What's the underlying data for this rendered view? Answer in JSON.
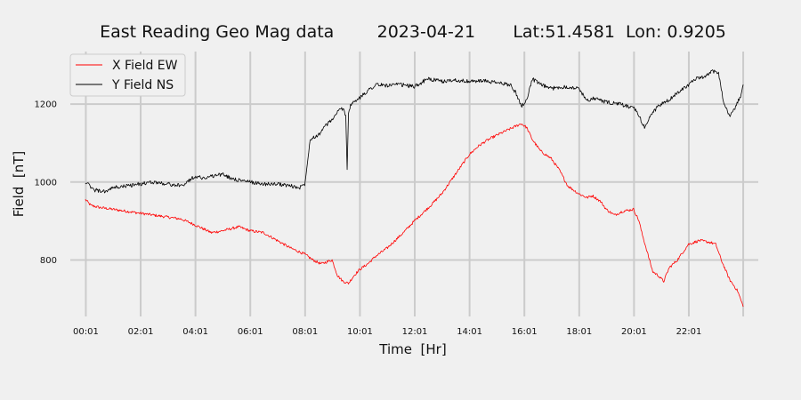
{
  "chart_data": {
    "type": "line",
    "title": "East Reading Geo Mag data        2023-04-21       Lat:51.4581  Lon: 0.9205",
    "xlabel": "Time  [Hr]",
    "ylabel": "Field  [nT]",
    "x_unit": "hours",
    "xlim": [
      -0.55,
      24.55
    ],
    "ylim": [
      655,
      1335
    ],
    "x_ticks": [
      {
        "value": 0.0167,
        "label": "00:01"
      },
      {
        "value": 2.0167,
        "label": "02:01"
      },
      {
        "value": 4.0167,
        "label": "04:01"
      },
      {
        "value": 6.0167,
        "label": "06:01"
      },
      {
        "value": 8.0167,
        "label": "08:01"
      },
      {
        "value": 10.0167,
        "label": "10:01"
      },
      {
        "value": 12.0167,
        "label": "12:01"
      },
      {
        "value": 14.0167,
        "label": "14:01"
      },
      {
        "value": 16.0167,
        "label": "16:01"
      },
      {
        "value": 18.0167,
        "label": "18:01"
      },
      {
        "value": 20.0167,
        "label": "20:01"
      },
      {
        "value": 22.0167,
        "label": "22:01"
      }
    ],
    "x_gridlines": [
      0.0167,
      2.0167,
      4.0167,
      6.0167,
      8.0167,
      10.0167,
      12.0167,
      14.0167,
      16.0167,
      18.0167,
      20.0167,
      22.0167,
      24.0
    ],
    "y_ticks": [
      800,
      1000,
      1200
    ],
    "grid": true,
    "legend": "upper-left",
    "series": [
      {
        "name": "X Field EW",
        "color": "#ff0000",
        "x": [
          0.0,
          0.2,
          0.5,
          1.0,
          1.5,
          2.0,
          2.5,
          3.0,
          3.5,
          4.0,
          4.3,
          4.6,
          5.0,
          5.3,
          5.6,
          6.0,
          6.5,
          7.0,
          7.5,
          8.0,
          8.3,
          8.6,
          9.0,
          9.2,
          9.4,
          9.6,
          9.8,
          10.0,
          10.3,
          10.6,
          11.0,
          11.3,
          11.6,
          12.0,
          12.3,
          12.6,
          13.0,
          13.3,
          13.6,
          14.0,
          14.3,
          14.6,
          15.0,
          15.3,
          15.6,
          15.9,
          16.1,
          16.3,
          16.6,
          17.0,
          17.3,
          17.6,
          18.0,
          18.3,
          18.5,
          18.8,
          19.0,
          19.3,
          19.6,
          20.0,
          20.2,
          20.3,
          20.5,
          20.7,
          20.9,
          21.1,
          21.3,
          21.6,
          22.0,
          22.4,
          22.8,
          23.0,
          23.2,
          23.5,
          23.8,
          24.0
        ],
        "y": [
          955,
          940,
          935,
          930,
          925,
          920,
          915,
          910,
          905,
          890,
          880,
          870,
          875,
          880,
          885,
          875,
          870,
          850,
          830,
          815,
          800,
          790,
          800,
          760,
          745,
          740,
          760,
          775,
          790,
          810,
          830,
          850,
          870,
          900,
          920,
          940,
          970,
          1000,
          1030,
          1070,
          1090,
          1105,
          1120,
          1130,
          1140,
          1150,
          1140,
          1110,
          1080,
          1060,
          1030,
          990,
          970,
          960,
          965,
          950,
          930,
          915,
          925,
          930,
          900,
          870,
          820,
          770,
          760,
          745,
          780,
          800,
          840,
          850,
          845,
          840,
          800,
          750,
          720,
          680
        ]
      },
      {
        "name": "Y Field NS",
        "color": "#000000",
        "x": [
          0.0,
          0.3,
          0.7,
          1.0,
          1.5,
          2.0,
          2.5,
          3.0,
          3.5,
          3.8,
          4.0,
          4.3,
          4.6,
          5.0,
          5.3,
          5.6,
          6.0,
          6.5,
          7.0,
          7.5,
          7.8,
          8.0,
          8.1,
          8.2,
          8.3,
          8.5,
          8.7,
          9.0,
          9.2,
          9.4,
          9.5,
          9.55,
          9.6,
          9.7,
          10.0,
          10.3,
          10.6,
          11.0,
          11.5,
          12.0,
          12.5,
          13.0,
          13.5,
          14.0,
          14.5,
          15.0,
          15.5,
          15.7,
          15.9,
          16.1,
          16.3,
          16.6,
          17.0,
          17.5,
          18.0,
          18.3,
          18.6,
          19.0,
          19.5,
          20.0,
          20.2,
          20.4,
          20.7,
          21.0,
          21.3,
          21.6,
          22.0,
          22.3,
          22.6,
          22.9,
          23.1,
          23.3,
          23.5,
          23.7,
          23.9,
          24.0
        ],
        "y": [
          1000,
          980,
          975,
          985,
          990,
          995,
          1000,
          995,
          990,
          1005,
          1015,
          1010,
          1015,
          1020,
          1010,
          1005,
          1000,
          995,
          995,
          990,
          985,
          995,
          1050,
          1110,
          1115,
          1120,
          1140,
          1160,
          1180,
          1190,
          1170,
          1035,
          1180,
          1200,
          1215,
          1235,
          1250,
          1248,
          1250,
          1245,
          1265,
          1258,
          1262,
          1258,
          1260,
          1255,
          1250,
          1230,
          1195,
          1210,
          1265,
          1250,
          1240,
          1245,
          1240,
          1210,
          1215,
          1205,
          1200,
          1190,
          1170,
          1140,
          1180,
          1200,
          1210,
          1230,
          1250,
          1265,
          1270,
          1285,
          1280,
          1200,
          1170,
          1190,
          1220,
          1250
        ]
      }
    ]
  }
}
